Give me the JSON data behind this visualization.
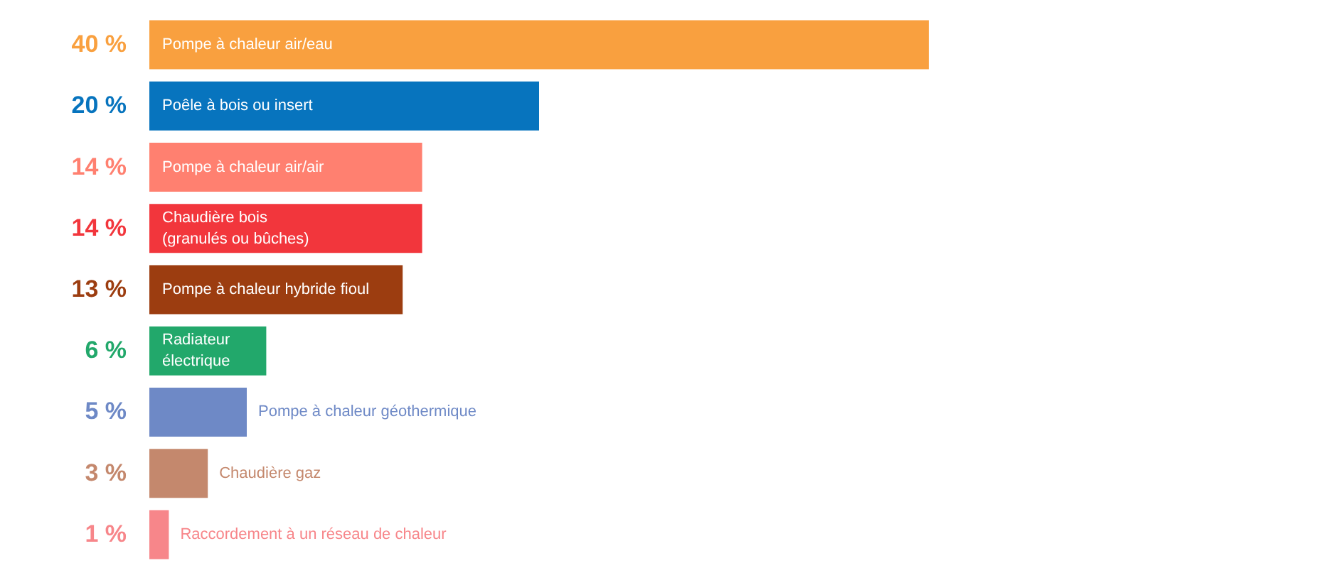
{
  "chart_data": {
    "type": "bar",
    "orientation": "horizontal",
    "categories": [
      "Pompe à chaleur air/eau",
      "Poêle à bois ou insert",
      "Pompe à chaleur air/air",
      "Chaudière bois\n(granulés ou bûches)",
      "Pompe à chaleur hybride fioul",
      "Radiateur\nélectrique",
      "Pompe à chaleur géothermique",
      "Chaudière gaz",
      "Raccordement à un réseau de chaleur"
    ],
    "values": [
      40,
      20,
      14,
      14,
      13,
      6,
      5,
      3,
      1
    ],
    "colors": [
      "#f9a03f",
      "#0774be",
      "#ff8070",
      "#f2363c",
      "#9c3d10",
      "#22a86b",
      "#6e89c6",
      "#c4886d",
      "#f7868a"
    ],
    "value_labels": [
      "40 %",
      "20 %",
      "14 %",
      "14 %",
      "13 %",
      "6 %",
      "5 %",
      "3 %",
      "1 %"
    ]
  }
}
